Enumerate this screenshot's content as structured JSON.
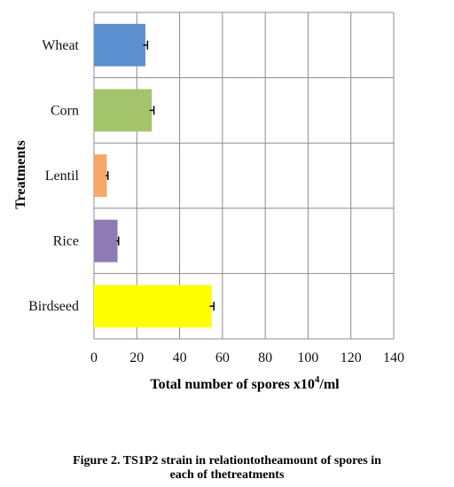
{
  "chart_data": {
    "type": "bar",
    "orientation": "horizontal",
    "categories": [
      "Wheat",
      "Corn",
      "Lentil",
      "Rice",
      "Birdseed"
    ],
    "values": [
      24,
      27,
      6,
      11,
      55
    ],
    "error": [
      1,
      1,
      0.5,
      0.5,
      1
    ],
    "colors": [
      "#5b8fd0",
      "#a3c46a",
      "#f8a766",
      "#8e7bb5",
      "#ffff00"
    ],
    "xlim": [
      0,
      140
    ],
    "xticks": [
      "0",
      "20",
      "40",
      "60",
      "80",
      "100",
      "120",
      "140"
    ],
    "grid": true,
    "xlabel": "Total number of spores x10",
    "xlabel_sup": "4",
    "xlabel_unit": "/ml",
    "ylabel": "Treatments"
  },
  "caption": {
    "line1": "Figure 2. TS1P2 strain in relationtotheamount of spores in",
    "line2": "each of thetreatments"
  }
}
